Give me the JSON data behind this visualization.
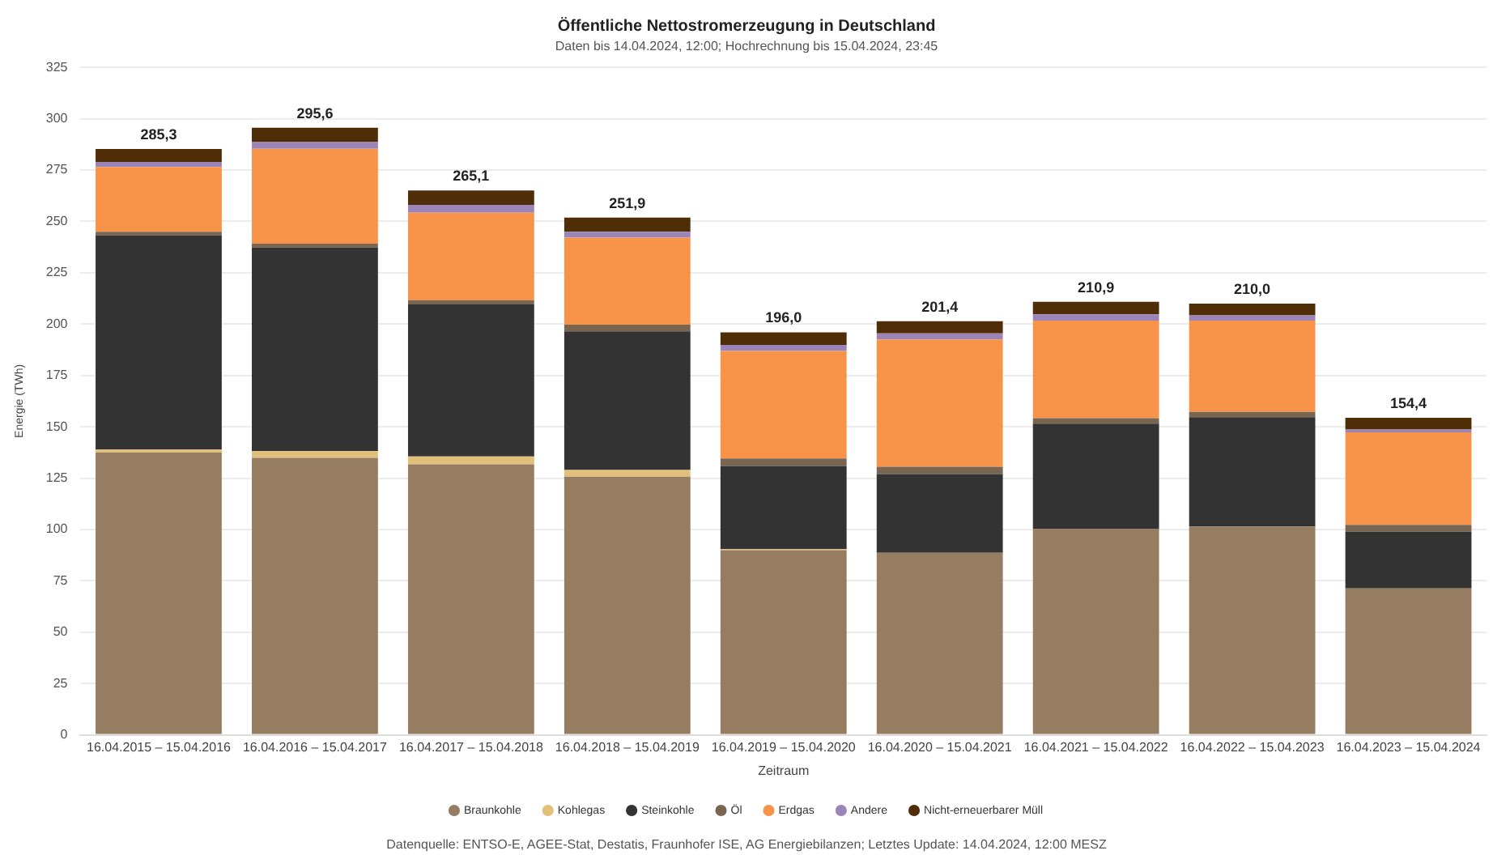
{
  "chart_data": {
    "type": "bar",
    "title": "Öffentliche Nettostromerzeugung in Deutschland",
    "subtitle": "Daten bis 14.04.2024, 12:00; Hochrechnung bis 15.04.2024, 23:45",
    "xlabel": "Zeitraum",
    "ylabel": "Energie (TWh)",
    "categories": [
      "16.04.2015 – 15.04.2016",
      "16.04.2016 – 15.04.2017",
      "16.04.2017 – 15.04.2018",
      "16.04.2018 – 15.04.2019",
      "16.04.2019 – 15.04.2020",
      "16.04.2020 – 15.04.2021",
      "16.04.2021 – 15.04.2022",
      "16.04.2022 – 15.04.2023",
      "16.04.2023 – 15.04.2024"
    ],
    "stacked": true,
    "series": [
      {
        "name": "Braunkohle",
        "color": "#967d62",
        "values": [
          137.4,
          134.9,
          131.7,
          125.7,
          89.9,
          88.6,
          100.2,
          101.5,
          71.3
        ]
      },
      {
        "name": "Kohlegas",
        "color": "#e0c07a",
        "values": [
          1.5,
          3.2,
          3.9,
          3.3,
          0.5,
          0,
          0,
          0,
          0
        ]
      },
      {
        "name": "Steinkohle",
        "color": "#333333",
        "values": [
          104.4,
          99.3,
          74.0,
          67.5,
          40.5,
          38.4,
          51.3,
          53.2,
          27.7
        ]
      },
      {
        "name": "Öl",
        "color": "#7a6550",
        "values": [
          1.7,
          1.7,
          2.0,
          3.2,
          3.7,
          3.5,
          2.7,
          2.5,
          3.2
        ]
      },
      {
        "name": "Erdgas",
        "color": "#f7944a",
        "values": [
          31.5,
          46.3,
          42.6,
          42.4,
          52.3,
          62.0,
          47.5,
          44.5,
          45.1
        ]
      },
      {
        "name": "Andere",
        "color": "#9b84b8",
        "values": [
          2.5,
          3.2,
          3.9,
          2.9,
          3.0,
          3.0,
          3.0,
          2.5,
          1.4
        ]
      },
      {
        "name": "Nicht-erneuerbarer Müll",
        "color": "#4f2d07",
        "values": [
          6.3,
          7.0,
          7.0,
          6.9,
          6.1,
          5.9,
          6.2,
          5.8,
          5.7
        ]
      }
    ],
    "totals": [
      "285,3",
      "295,6",
      "265,1",
      "251,9",
      "196,0",
      "201,4",
      "210,9",
      "210,0",
      "154,4"
    ],
    "ylim": [
      0,
      325
    ],
    "yticks": [
      0,
      25,
      50,
      75,
      100,
      125,
      150,
      175,
      200,
      225,
      250,
      275,
      300,
      325
    ],
    "grid": "y",
    "legend": "bottom",
    "annotations": [
      "Datenquelle: ENTSO-E, AGEE-Stat, Destatis, Fraunhofer ISE, AG Energiebilanzen; Letztes Update: 14.04.2024, 12:00 MESZ"
    ]
  }
}
